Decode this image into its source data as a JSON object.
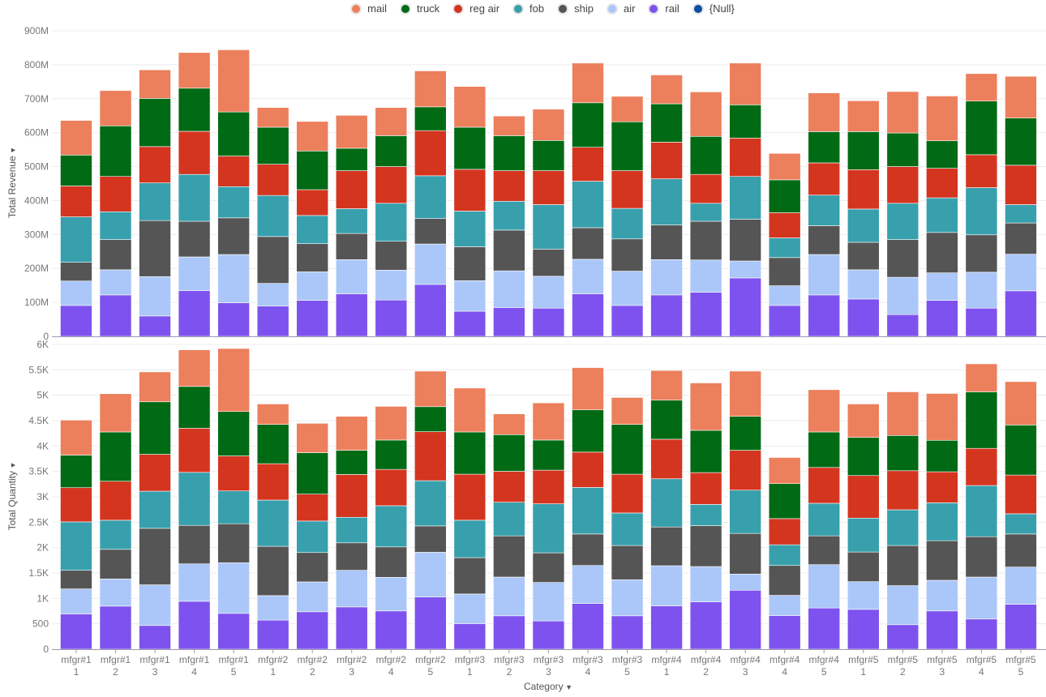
{
  "legend": [
    {
      "name": "mail",
      "color": "#EC7F5C"
    },
    {
      "name": "truck",
      "color": "#006A14"
    },
    {
      "name": "reg air",
      "color": "#D4351F"
    },
    {
      "name": "fob",
      "color": "#38A0AD"
    },
    {
      "name": "ship",
      "color": "#555555"
    },
    {
      "name": "air",
      "color": "#ABC7F9"
    },
    {
      "name": "rail",
      "color": "#7E52EE"
    },
    {
      "name": "{Null}",
      "color": "#0B4DA2"
    }
  ],
  "chart_data": [
    {
      "type": "bar",
      "stacked": true,
      "ylabel": "Total Revenue",
      "xlabel": "Category",
      "ylim": [
        0,
        900000000
      ],
      "yticks": [
        0,
        100000000,
        200000000,
        300000000,
        400000000,
        500000000,
        600000000,
        700000000,
        800000000,
        900000000
      ],
      "ytick_labels": [
        "0",
        "100M",
        "200M",
        "300M",
        "400M",
        "500M",
        "600M",
        "700M",
        "800M",
        "900M"
      ],
      "grid": true,
      "legend_position": "top",
      "categories": [
        "mfgr#11",
        "mfgr#12",
        "mfgr#13",
        "mfgr#14",
        "mfgr#15",
        "mfgr#21",
        "mfgr#22",
        "mfgr#23",
        "mfgr#24",
        "mfgr#25",
        "mfgr#31",
        "mfgr#32",
        "mfgr#33",
        "mfgr#34",
        "mfgr#35",
        "mfgr#41",
        "mfgr#42",
        "mfgr#43",
        "mfgr#44",
        "mfgr#45",
        "mfgr#51",
        "mfgr#52",
        "mfgr#53",
        "mfgr#54",
        "mfgr#55"
      ],
      "unit_multiplier": 1000000,
      "series": [
        {
          "name": "rail",
          "color": "#7E52EE",
          "values": [
            91,
            122,
            60,
            135,
            99,
            89,
            106,
            125,
            107,
            153,
            74,
            85,
            83,
            125,
            91,
            122,
            130,
            172,
            91,
            122,
            110,
            64,
            106,
            83,
            134
          ]
        },
        {
          "name": "air",
          "color": "#ABC7F9",
          "values": [
            72,
            74,
            116,
            99,
            142,
            67,
            84,
            101,
            88,
            119,
            90,
            108,
            94,
            102,
            101,
            104,
            95,
            50,
            58,
            119,
            86,
            110,
            81,
            106,
            108
          ]
        },
        {
          "name": "ship",
          "color": "#555555",
          "values": [
            55,
            89,
            165,
            105,
            108,
            138,
            83,
            77,
            85,
            75,
            100,
            120,
            80,
            93,
            95,
            102,
            114,
            123,
            83,
            85,
            81,
            111,
            119,
            110,
            92
          ]
        },
        {
          "name": "fob",
          "color": "#38A0AD",
          "values": [
            134,
            82,
            111,
            138,
            92,
            121,
            83,
            73,
            112,
            126,
            105,
            85,
            131,
            137,
            90,
            136,
            53,
            126,
            58,
            90,
            98,
            107,
            102,
            139,
            54
          ]
        },
        {
          "name": "reg air",
          "color": "#D4351F",
          "values": [
            91,
            104,
            107,
            127,
            90,
            92,
            76,
            112,
            108,
            133,
            123,
            90,
            100,
            100,
            111,
            108,
            85,
            113,
            74,
            95,
            116,
            108,
            87,
            97,
            116
          ]
        },
        {
          "name": "truck",
          "color": "#006A14",
          "values": [
            91,
            149,
            142,
            127,
            130,
            109,
            114,
            66,
            91,
            70,
            124,
            103,
            89,
            131,
            144,
            113,
            112,
            98,
            97,
            92,
            112,
            99,
            81,
            158,
            139
          ]
        },
        {
          "name": "mail",
          "color": "#EC7F5C",
          "values": [
            102,
            104,
            84,
            105,
            183,
            58,
            87,
            97,
            83,
            106,
            120,
            58,
            92,
            117,
            75,
            85,
            131,
            123,
            78,
            114,
            91,
            122,
            132,
            81,
            123
          ]
        }
      ]
    },
    {
      "type": "bar",
      "stacked": true,
      "ylabel": "Total Quantity",
      "xlabel": "Category",
      "ylim": [
        0,
        6000
      ],
      "yticks": [
        0,
        500,
        1000,
        1500,
        2000,
        2500,
        3000,
        3500,
        4000,
        4500,
        5000,
        5500,
        6000
      ],
      "ytick_labels": [
        "0",
        "500",
        "1K",
        "1.5K",
        "2K",
        "2.5K",
        "3K",
        "3.5K",
        "4K",
        "4.5K",
        "5K",
        "5.5K",
        "6K"
      ],
      "grid": true,
      "legend_position": "top",
      "categories": [
        "mfgr#11",
        "mfgr#12",
        "mfgr#13",
        "mfgr#14",
        "mfgr#15",
        "mfgr#21",
        "mfgr#22",
        "mfgr#23",
        "mfgr#24",
        "mfgr#25",
        "mfgr#31",
        "mfgr#32",
        "mfgr#33",
        "mfgr#34",
        "mfgr#35",
        "mfgr#41",
        "mfgr#42",
        "mfgr#43",
        "mfgr#44",
        "mfgr#45",
        "mfgr#51",
        "mfgr#52",
        "mfgr#53",
        "mfgr#54",
        "mfgr#55"
      ],
      "series": [
        {
          "name": "rail",
          "color": "#7E52EE",
          "values": [
            694,
            848,
            466,
            943,
            705,
            572,
            737,
            832,
            753,
            1028,
            504,
            657,
            557,
            901,
            657,
            853,
            933,
            1161,
            663,
            811,
            784,
            482,
            753,
            594,
            885
          ]
        },
        {
          "name": "air",
          "color": "#ABC7F9",
          "values": [
            493,
            535,
            801,
            737,
            996,
            483,
            588,
            721,
            662,
            880,
            583,
            763,
            757,
            747,
            710,
            790,
            694,
            318,
            397,
            853,
            546,
            769,
            604,
            826,
            732
          ]
        },
        {
          "name": "ship",
          "color": "#555555",
          "values": [
            366,
            583,
            1113,
            758,
            769,
            970,
            578,
            541,
            599,
            519,
            715,
            811,
            583,
            620,
            674,
            763,
            806,
            800,
            588,
            567,
            583,
            790,
            779,
            795,
            651
          ]
        },
        {
          "name": "fob",
          "color": "#38A0AD",
          "values": [
            954,
            573,
            731,
            1044,
            646,
            911,
            620,
            503,
            811,
            891,
            737,
            663,
            965,
            917,
            641,
            949,
            418,
            853,
            408,
            642,
            668,
            704,
            747,
            1007,
            398
          ]
        },
        {
          "name": "reg air",
          "color": "#D4351F",
          "values": [
            673,
            768,
            726,
            869,
            689,
            716,
            530,
            843,
            715,
            964,
            906,
            609,
            663,
            695,
            763,
            779,
            626,
            785,
            515,
            705,
            838,
            769,
            610,
            732,
            763
          ]
        },
        {
          "name": "truck",
          "color": "#006A14",
          "values": [
            641,
            970,
            1034,
            822,
            875,
            774,
            816,
            477,
            578,
            493,
            832,
            721,
            593,
            832,
            981,
            769,
            832,
            668,
            689,
            699,
            752,
            694,
            620,
            1113,
            986
          ]
        },
        {
          "name": "mail",
          "color": "#EC7F5C",
          "values": [
            689,
            753,
            588,
            721,
            1240,
            402,
            578,
            668,
            663,
            700,
            864,
            408,
            732,
            832,
            530,
            583,
            933,
            890,
            514,
            832,
            657,
            859,
            922,
            551,
            853
          ]
        }
      ]
    }
  ]
}
